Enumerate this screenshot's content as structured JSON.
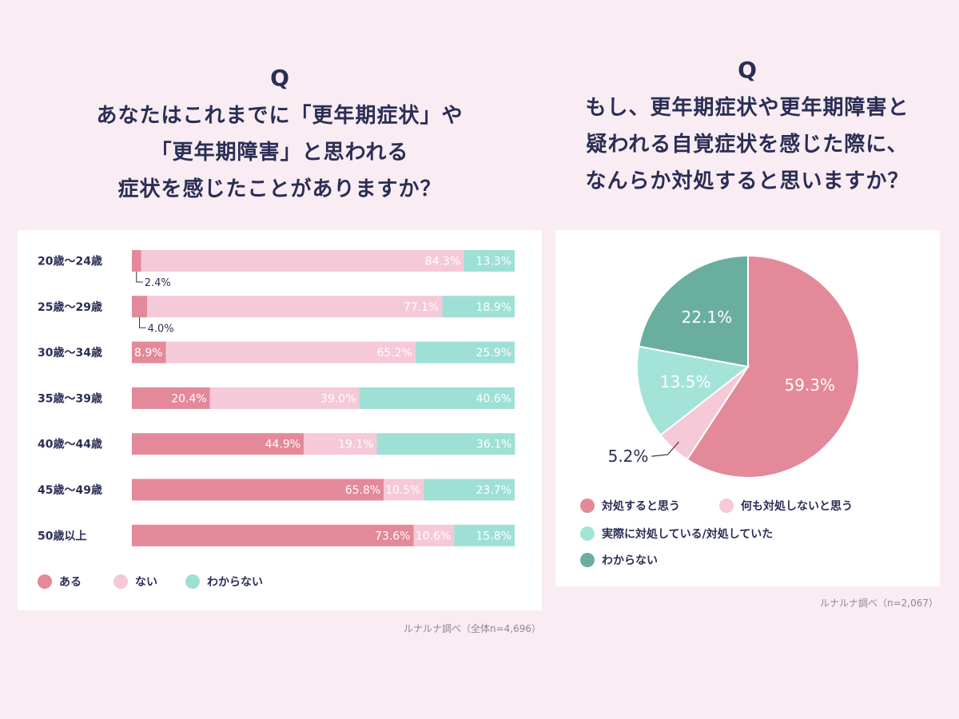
{
  "colors": {
    "aru": "#e3899a",
    "nai": "#f5c9d7",
    "wakaranai": "#9ee0d6",
    "act": "#e3899a",
    "no_act": "#f5c9d7",
    "acted": "#a4e4d8",
    "unknown": "#6aaea0",
    "text": "#2a2e55",
    "background": "#f9ecf2"
  },
  "left": {
    "q_mark": "Q",
    "question_lines": [
      "あなたはこれまでに「更年期症状」や",
      "「更年期障害」と思われる",
      "症状を感じたことがありますか？"
    ],
    "source": "ルナルナ調べ（全体n=4,696）"
  },
  "right": {
    "q_mark": "Q",
    "question_lines": [
      "もし、更年期症状や更年期障害と",
      "疑われる自覚症状を感じた際に、",
      "なんらか対処すると思いますか？"
    ],
    "source": "ルナルナ調べ（n=2,067）"
  },
  "chart_data": [
    {
      "type": "bar",
      "orientation": "horizontal",
      "stacked": "100%",
      "categories": [
        "20歳～24歳",
        "25歳～29歳",
        "30歳～34歳",
        "35歳～39歳",
        "40歳～44歳",
        "45歳～49歳",
        "50歳以上"
      ],
      "series": [
        {
          "name": "ある",
          "values": [
            2.4,
            4.0,
            8.9,
            20.4,
            44.9,
            65.8,
            73.6
          ],
          "labels": [
            "2.4%",
            "4.0%",
            "8.9%",
            "20.4%",
            "44.9%",
            "65.8%",
            "73.6%"
          ]
        },
        {
          "name": "ない",
          "values": [
            84.3,
            77.1,
            65.2,
            39.0,
            19.1,
            10.5,
            10.6
          ],
          "labels": [
            "84.3%",
            "77.1%",
            "65.2%",
            "39.0%",
            "19.1%",
            "10.5%",
            "10.6%"
          ]
        },
        {
          "name": "わからない",
          "values": [
            13.3,
            18.9,
            25.9,
            40.6,
            36.1,
            23.7,
            15.8
          ],
          "labels": [
            "13.3%",
            "18.9%",
            "25.9%",
            "40.6%",
            "36.1%",
            "23.7%",
            "15.8%"
          ]
        }
      ],
      "legend_position": "bottom-left",
      "grid": false
    },
    {
      "type": "pie",
      "categories": [
        "対処すると思う",
        "何も対処しないと思う",
        "実際に対処している/対処していた",
        "わからない"
      ],
      "values": [
        59.3,
        5.2,
        13.5,
        22.1
      ],
      "labels": [
        "59.3%",
        "5.2%",
        "13.5%",
        "22.1%"
      ],
      "legend_position": "bottom"
    }
  ]
}
